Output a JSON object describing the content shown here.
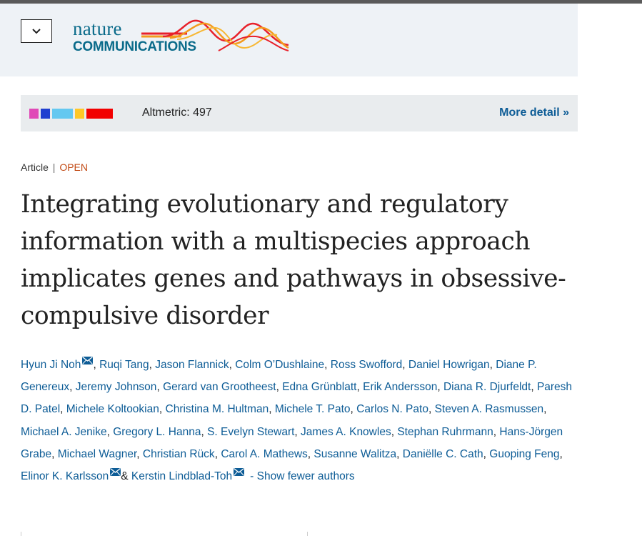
{
  "header": {
    "logo_text_top": "nature",
    "logo_text_bottom": "COMMUNICATIONS",
    "menu_icon": "chevron-down-icon"
  },
  "altmetric": {
    "score_text": "Altmetric: 497",
    "more_detail_label": "More detail",
    "more_detail_icon": "»",
    "badge_colors": [
      "#e04ab7",
      "#1f3fd0",
      "#64c8f0",
      "#ffc727",
      "#f20000"
    ]
  },
  "article": {
    "type": "Article",
    "separator": "|",
    "access": "OPEN",
    "title": "Integrating evolutionary and regulatory information with a multispecies approach implicates genes and pathways in obsessive-compulsive disorder"
  },
  "authors": {
    "list": [
      "Hyun Ji Noh",
      "Ruqi Tang",
      "Jason Flannick",
      "Colm O’Dushlaine",
      "Ross Swofford",
      "Daniel Howrigan",
      "Diane P. Genereux",
      "Jeremy Johnson",
      "Gerard van Grootheest",
      "Edna Grünblatt",
      "Erik Andersson",
      "Diana R. Djurfeldt",
      "Paresh D. Patel",
      "Michele Koltookian",
      "Christina M. Hultman",
      "Michele T. Pato",
      "Carlos N. Pato",
      "Steven A. Rasmussen",
      "Michael A. Jenike",
      "Gregory L. Hanna",
      "S. Evelyn Stewart",
      "James A. Knowles",
      "Stephan Ruhrmann",
      "Hans-Jörgen Grabe",
      "Michael Wagner",
      "Christian Rück",
      "Carol A. Mathews",
      "Susanne Walitza",
      "Daniëlle C. Cath",
      "Guoping Feng",
      "Elinor K. Karlsson",
      "Kerstin Lindblad-Toh"
    ],
    "separator": ", ",
    "ampersand": "& ",
    "show_fewer_label": "- Show fewer authors"
  }
}
